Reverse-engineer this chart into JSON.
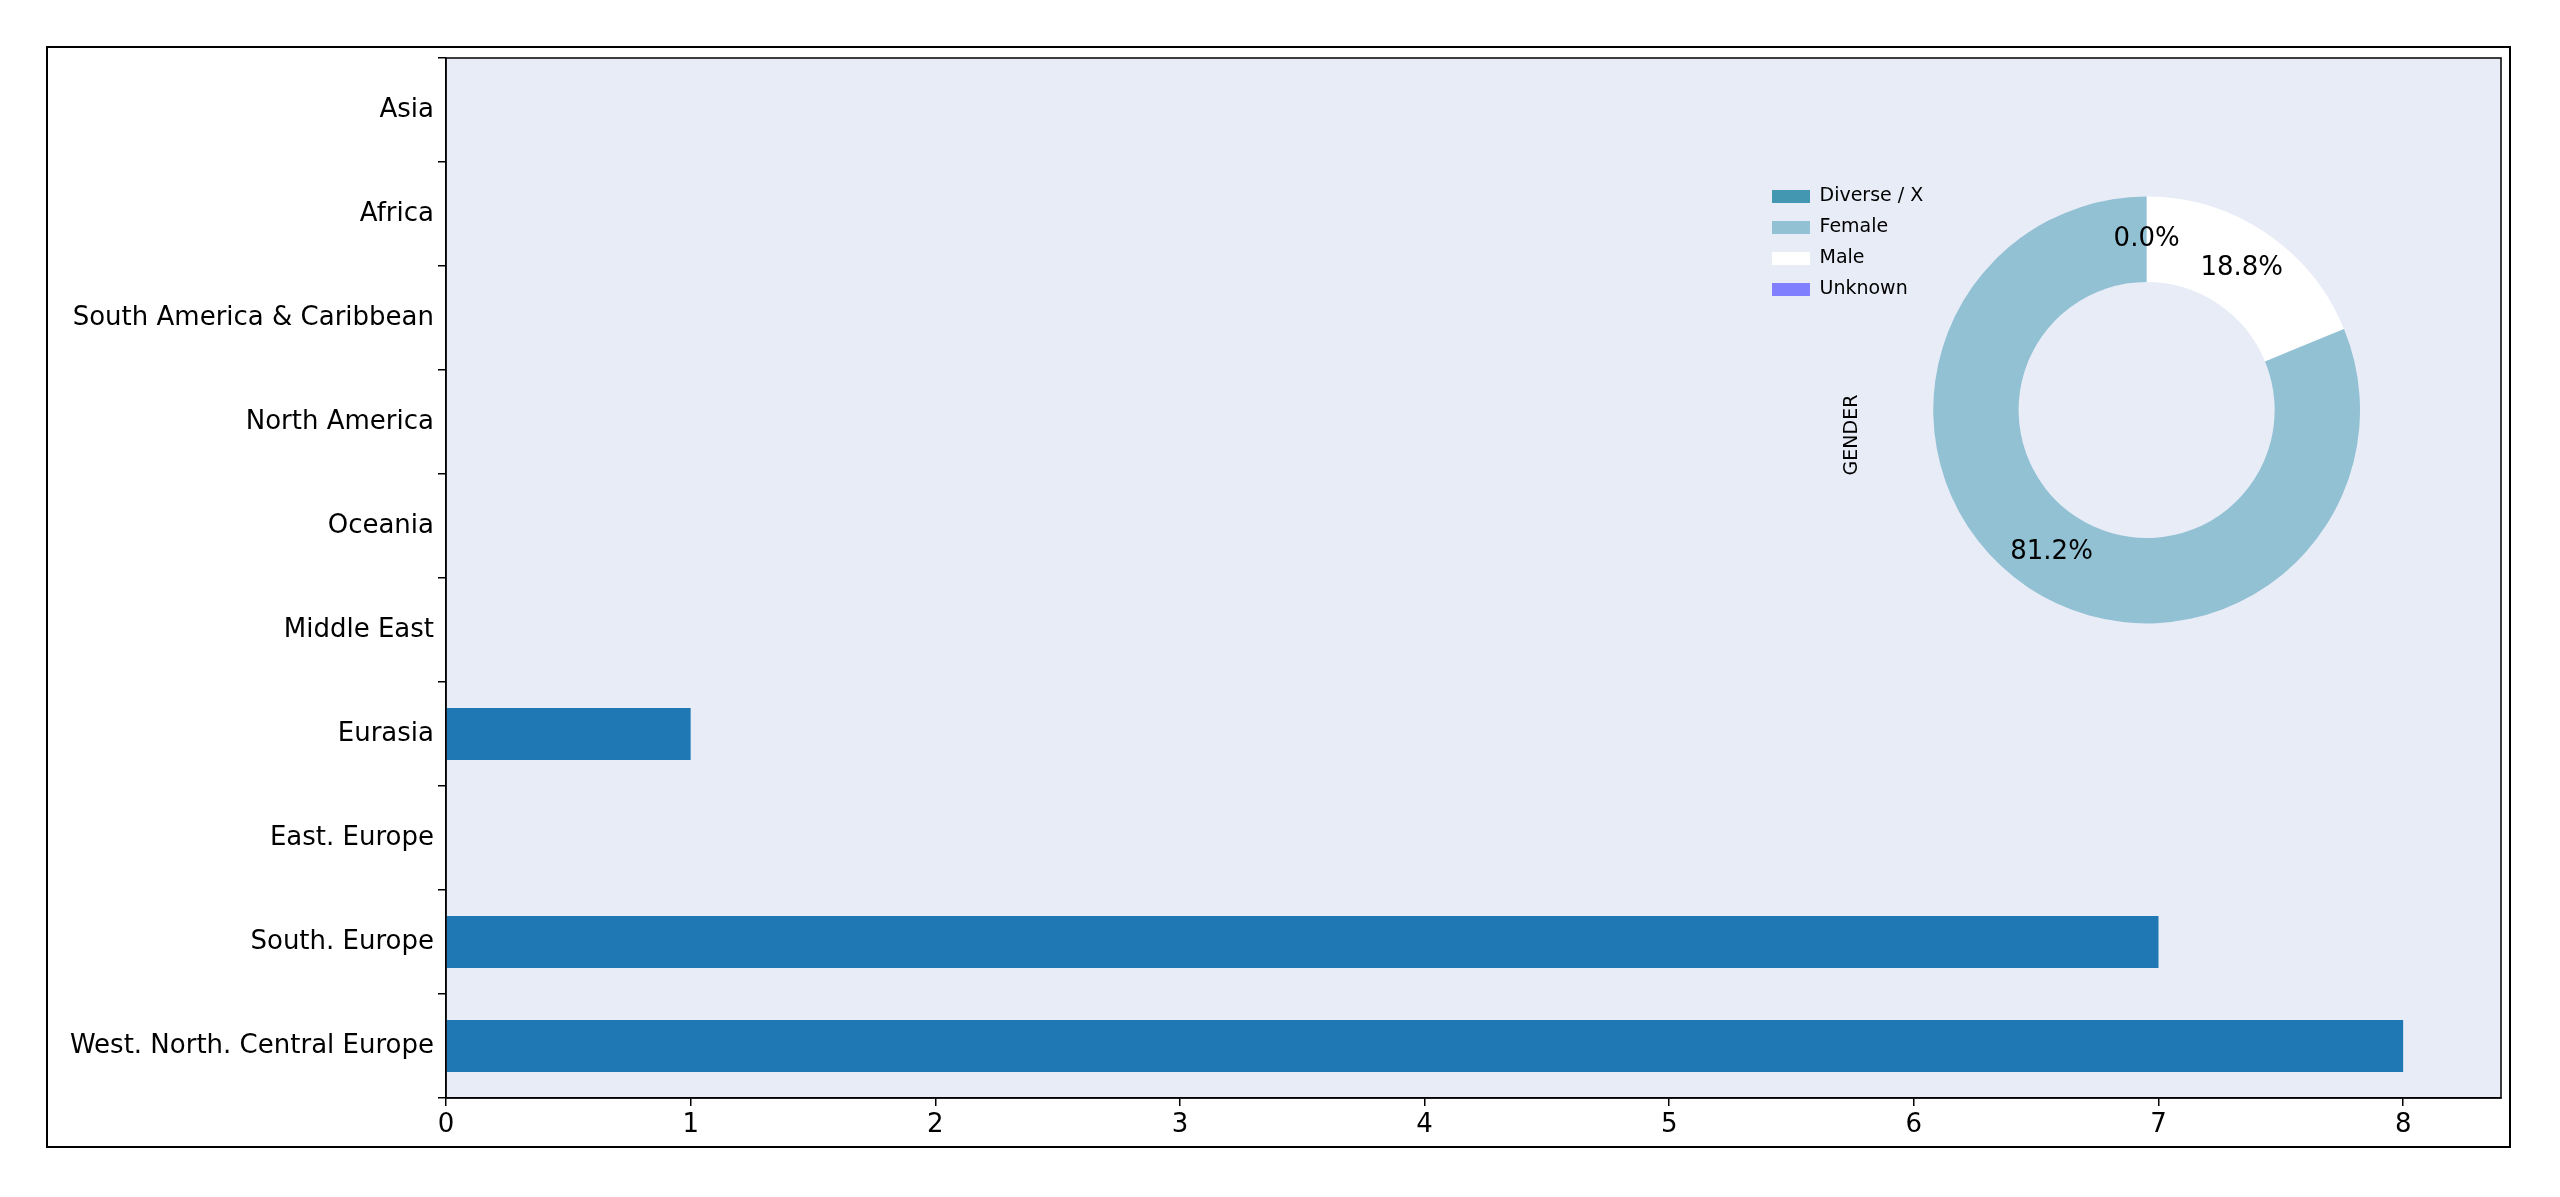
{
  "chart_data": [
    {
      "type": "bar",
      "orientation": "horizontal",
      "categories": [
        "Asia",
        "Africa",
        "South America & Caribbean",
        "North America",
        "Oceania",
        "Middle East",
        "Eurasia",
        "East. Europe",
        "South. Europe",
        "West. North. Central Europe"
      ],
      "values": [
        0,
        0,
        0,
        0,
        0,
        0,
        1,
        0,
        7,
        8
      ],
      "color": "#1f77b4",
      "xlim": [
        0,
        8.4
      ],
      "xticks": [
        0,
        1,
        2,
        3,
        4,
        5,
        6,
        7,
        8
      ]
    },
    {
      "type": "donut",
      "ylabel": "GENDER",
      "categories": [
        "Diverse / X",
        "Female",
        "Male",
        "Unknown"
      ],
      "values": [
        0,
        81.2,
        18.8,
        0
      ],
      "colors": [
        "#4497b0",
        "#92c1d4",
        "#ffffff",
        "#8080ff"
      ],
      "value_labels": [
        "0.0%",
        "81.2%",
        "18.8%",
        null
      ],
      "legend": "top left"
    }
  ]
}
